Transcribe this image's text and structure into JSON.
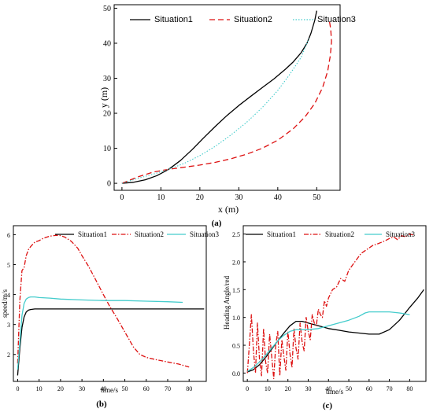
{
  "chart_data": [
    {
      "id": "a",
      "type": "line",
      "panel_label": "(a)",
      "xlabel": "x (m)",
      "ylabel": "y (m)",
      "xlim": [
        -2,
        56
      ],
      "ylim": [
        -2,
        51
      ],
      "xticks": [
        "0",
        "10",
        "20",
        "30",
        "40",
        "50"
      ],
      "yticks": [
        "0",
        "10",
        "20",
        "30",
        "40",
        "50"
      ],
      "xtick_values": [
        0,
        10,
        20,
        30,
        40,
        50
      ],
      "ytick_values": [
        0,
        10,
        20,
        30,
        40,
        50
      ],
      "legend_position": "top",
      "series": [
        {
          "name": "Situation1",
          "color": "#000000",
          "style": "solid",
          "x": [
            0,
            3,
            6,
            9,
            12,
            15,
            18,
            21,
            24,
            27,
            30,
            33,
            36,
            39,
            42,
            44,
            46,
            47.5,
            48.5,
            49.5,
            50
          ],
          "y": [
            0,
            0.3,
            1.0,
            2.2,
            4.0,
            6.5,
            9.6,
            13.0,
            16.3,
            19.4,
            22.2,
            24.8,
            27.3,
            29.8,
            32.6,
            34.7,
            37.3,
            40.0,
            42.8,
            46.5,
            49.3
          ]
        },
        {
          "name": "Situation2",
          "color": "#dd1111",
          "style": "dashed",
          "x": [
            0,
            4,
            8,
            12,
            16,
            20,
            24,
            28,
            32,
            36,
            40,
            44,
            47,
            49.5,
            51.5,
            52.8,
            53.5,
            53.8,
            53.6,
            53.2
          ],
          "y": [
            0,
            1.8,
            3.2,
            4.0,
            4.6,
            5.2,
            6.0,
            7.0,
            8.3,
            10.0,
            12.3,
            15.6,
            19.0,
            22.8,
            27.3,
            32.0,
            36.5,
            40.5,
            44.0,
            46.8
          ]
        },
        {
          "name": "Situation3",
          "color": "#44cccc",
          "style": "dotted",
          "x": [
            0,
            4,
            8,
            12,
            16,
            20,
            24,
            28,
            32,
            36,
            40,
            43,
            46,
            48
          ],
          "y": [
            0,
            1.4,
            2.6,
            4.0,
            5.7,
            7.9,
            10.6,
            13.8,
            17.4,
            21.6,
            26.5,
            31.0,
            36.0,
            41.3
          ]
        }
      ]
    },
    {
      "id": "b",
      "type": "line",
      "panel_label": "(b)",
      "xlabel": "time/s",
      "ylabel": "speed/m/s",
      "xlim": [
        -2,
        88
      ],
      "ylim": [
        1.1,
        6.3
      ],
      "xticks": [
        "0",
        "10",
        "20",
        "30",
        "40",
        "50",
        "60",
        "70",
        "80"
      ],
      "yticks": [
        "2",
        "3",
        "4",
        "5",
        "6"
      ],
      "xtick_values": [
        0,
        10,
        20,
        30,
        40,
        50,
        60,
        70,
        80
      ],
      "ytick_values": [
        2,
        3,
        4,
        5,
        6
      ],
      "legend_position": "top",
      "series": [
        {
          "name": "Situation1",
          "color": "#000000",
          "style": "solid",
          "x": [
            0,
            1,
            2,
            3,
            4,
            5,
            6,
            8,
            10,
            20,
            30,
            40,
            50,
            60,
            70,
            80,
            87
          ],
          "y": [
            1.3,
            2.2,
            2.9,
            3.25,
            3.42,
            3.48,
            3.5,
            3.52,
            3.52,
            3.52,
            3.52,
            3.52,
            3.52,
            3.52,
            3.52,
            3.52,
            3.52
          ]
        },
        {
          "name": "Situation2",
          "color": "#dd1111",
          "style": "dashdot",
          "x": [
            0,
            1,
            2,
            3,
            4,
            5,
            6,
            8,
            10,
            12,
            15,
            18,
            20,
            22,
            25,
            28,
            30,
            33,
            36,
            40,
            43,
            46,
            50,
            54,
            57,
            60,
            65,
            70,
            75,
            80
          ],
          "y": [
            1.7,
            3.8,
            4.8,
            4.9,
            5.3,
            5.5,
            5.6,
            5.75,
            5.8,
            5.88,
            5.95,
            5.98,
            5.97,
            5.92,
            5.78,
            5.55,
            5.3,
            4.95,
            4.55,
            4.0,
            3.6,
            3.25,
            2.75,
            2.25,
            2.0,
            1.9,
            1.82,
            1.75,
            1.68,
            1.58
          ]
        },
        {
          "name": "Situation3",
          "color": "#44cccc",
          "style": "solid",
          "x": [
            0,
            1,
            2,
            3,
            4,
            5,
            6,
            8,
            10,
            15,
            20,
            30,
            40,
            50,
            60,
            70,
            77
          ],
          "y": [
            1.5,
            2.4,
            3.3,
            3.7,
            3.85,
            3.9,
            3.92,
            3.92,
            3.9,
            3.88,
            3.85,
            3.82,
            3.8,
            3.8,
            3.78,
            3.76,
            3.74
          ]
        }
      ]
    },
    {
      "id": "c",
      "type": "line",
      "panel_label": "(c)",
      "xlabel": "time/s",
      "ylabel": "Heading Angle/red",
      "xlim": [
        -2,
        88
      ],
      "ylim": [
        -0.15,
        2.65
      ],
      "xticks": [
        "0",
        "10",
        "20",
        "30",
        "40",
        "50",
        "60",
        "70",
        "80"
      ],
      "yticks": [
        "0.0",
        "0.5",
        "1.0",
        "1.5",
        "2.0",
        "2.5"
      ],
      "xtick_values": [
        0,
        10,
        20,
        30,
        40,
        50,
        60,
        70,
        80
      ],
      "ytick_values": [
        0,
        0.5,
        1.0,
        1.5,
        2.0,
        2.5
      ],
      "legend_position": "top",
      "series": [
        {
          "name": "Situation1",
          "color": "#000000",
          "style": "solid",
          "x": [
            0,
            3,
            6,
            9,
            12,
            15,
            18,
            21,
            24,
            27,
            30,
            35,
            40,
            45,
            50,
            55,
            60,
            65,
            70,
            75,
            80,
            84,
            87
          ],
          "y": [
            0.02,
            0.06,
            0.15,
            0.28,
            0.43,
            0.58,
            0.72,
            0.85,
            0.93,
            0.93,
            0.9,
            0.85,
            0.8,
            0.77,
            0.74,
            0.72,
            0.7,
            0.7,
            0.78,
            0.95,
            1.18,
            1.35,
            1.5
          ]
        },
        {
          "name": "Situation2",
          "color": "#dd1111",
          "style": "dashdot",
          "x": [
            0,
            1,
            2,
            3,
            4,
            5,
            6,
            7,
            8,
            9,
            10,
            11,
            12,
            13,
            14,
            15,
            16,
            17,
            18,
            19,
            20,
            21,
            22,
            23,
            24,
            25,
            26,
            27,
            28,
            29,
            30,
            31,
            32,
            33,
            34,
            35,
            36,
            37,
            38,
            39,
            40,
            42,
            44,
            46,
            48,
            50,
            52,
            54,
            56,
            58,
            60,
            62,
            64,
            66,
            68,
            70,
            72,
            74,
            76,
            78,
            80,
            82
          ],
          "y": [
            0.0,
            0.5,
            1.05,
            0.4,
            0.0,
            0.9,
            0.25,
            -0.05,
            0.8,
            0.2,
            0.0,
            0.7,
            0.3,
            -0.1,
            0.5,
            0.75,
            -0.05,
            0.6,
            0.3,
            0.05,
            0.75,
            0.35,
            0.1,
            0.8,
            0.45,
            0.25,
            0.9,
            0.55,
            0.4,
            1.0,
            0.75,
            0.6,
            1.05,
            0.9,
            0.85,
            1.15,
            1.05,
            1.0,
            1.3,
            1.2,
            1.35,
            1.5,
            1.55,
            1.7,
            1.65,
            1.85,
            1.95,
            2.05,
            2.15,
            2.2,
            2.25,
            2.3,
            2.32,
            2.35,
            2.38,
            2.42,
            2.45,
            2.4,
            2.47,
            2.45,
            2.5,
            2.48
          ]
        },
        {
          "name": "Situation3",
          "color": "#44cccc",
          "style": "solid",
          "x": [
            0,
            3,
            6,
            9,
            12,
            15,
            18,
            21,
            24,
            27,
            30,
            35,
            40,
            45,
            50,
            55,
            58,
            60,
            65,
            70,
            75,
            80
          ],
          "y": [
            0.03,
            0.1,
            0.2,
            0.32,
            0.45,
            0.58,
            0.68,
            0.75,
            0.78,
            0.78,
            0.78,
            0.8,
            0.85,
            0.9,
            0.95,
            1.02,
            1.08,
            1.1,
            1.1,
            1.1,
            1.08,
            1.05
          ]
        }
      ]
    }
  ]
}
